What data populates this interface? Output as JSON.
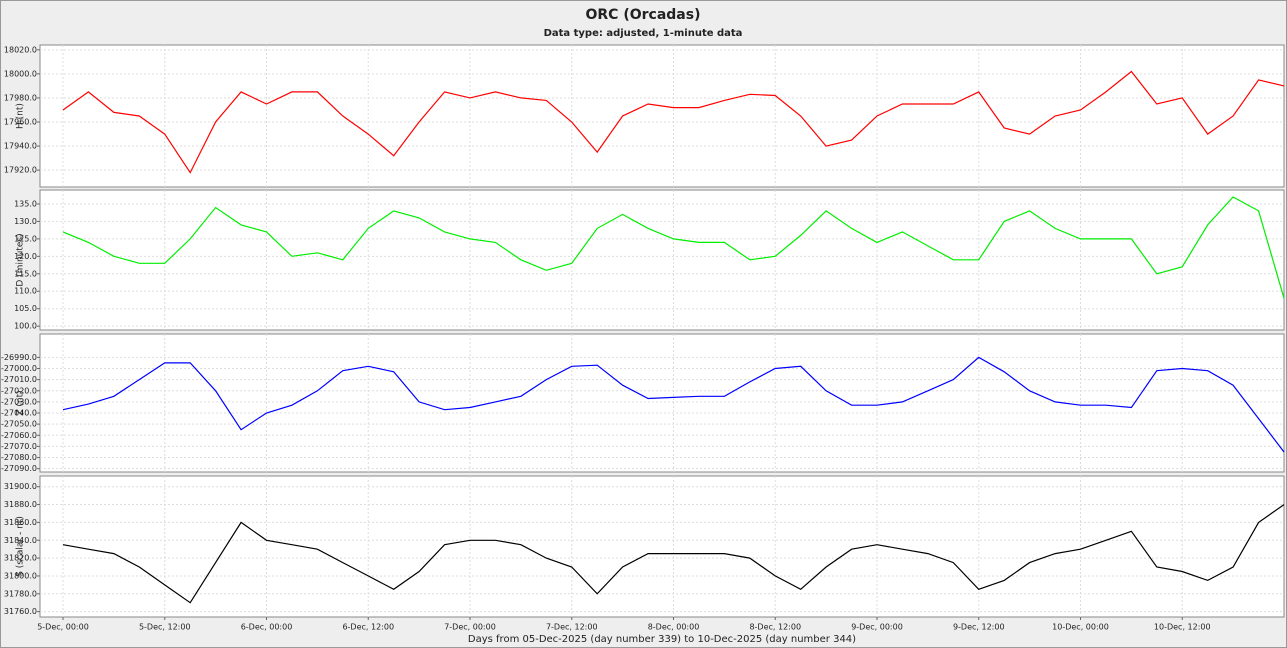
{
  "title": "ORC (Orcadas)",
  "subtitle": "Data type: adjusted, 1-minute data",
  "chart_data": [
    {
      "type": "line",
      "ylabel": "H (nt)",
      "color": "#ff0000",
      "grid": true,
      "xlim": [
        -0.113,
        6
      ],
      "ylim": [
        17906,
        18024
      ],
      "yticks": [
        {
          "value": 17920,
          "label": "17920.0"
        },
        {
          "value": 17940,
          "label": "17940.0"
        },
        {
          "value": 17960,
          "label": "17960.0"
        },
        {
          "value": 17980,
          "label": "17980.0"
        },
        {
          "value": 18000,
          "label": "18000.0"
        },
        {
          "value": 18020,
          "label": "18020.0"
        }
      ],
      "x": [
        0,
        0.125,
        0.25,
        0.375,
        0.5,
        0.625,
        0.75,
        0.875,
        1,
        1.125,
        1.25,
        1.375,
        1.5,
        1.625,
        1.75,
        1.875,
        2,
        2.125,
        2.25,
        2.375,
        2.5,
        2.625,
        2.75,
        2.875,
        3,
        3.125,
        3.25,
        3.375,
        3.5,
        3.625,
        3.75,
        3.875,
        4,
        4.125,
        4.25,
        4.375,
        4.5,
        4.625,
        4.75,
        4.875,
        5,
        5.125,
        5.25,
        5.375,
        5.5,
        5.625,
        5.75,
        5.875,
        6
      ],
      "values": [
        17970,
        17985,
        17968,
        17965,
        17950,
        17918,
        17960,
        17985,
        17975,
        17985,
        17985,
        17965,
        17950,
        17932,
        17960,
        17985,
        17980,
        17985,
        17980,
        17978,
        17960,
        17935,
        17965,
        17975,
        17972,
        17972,
        17978,
        17983,
        17982,
        17965,
        17940,
        17945,
        17965,
        17975,
        17975,
        17975,
        17985,
        17955,
        17950,
        17965,
        17970,
        17985,
        18002,
        17975,
        17980,
        17950,
        17965,
        17995,
        17990
      ]
    },
    {
      "type": "line",
      "ylabel": "D (minutes)",
      "color": "#00ee00",
      "grid": true,
      "xlim": [
        -0.113,
        6
      ],
      "ylim": [
        98.9,
        139
      ],
      "yticks": [
        {
          "value": 100,
          "label": "100.0"
        },
        {
          "value": 105,
          "label": "105.0"
        },
        {
          "value": 110,
          "label": "110.0"
        },
        {
          "value": 115,
          "label": "115.0"
        },
        {
          "value": 120,
          "label": "120.0"
        },
        {
          "value": 125,
          "label": "125.0"
        },
        {
          "value": 130,
          "label": "130.0"
        },
        {
          "value": 135,
          "label": "135.0"
        }
      ],
      "x": [
        0,
        0.125,
        0.25,
        0.375,
        0.5,
        0.625,
        0.75,
        0.875,
        1,
        1.125,
        1.25,
        1.375,
        1.5,
        1.625,
        1.75,
        1.875,
        2,
        2.125,
        2.25,
        2.375,
        2.5,
        2.625,
        2.75,
        2.875,
        3,
        3.125,
        3.25,
        3.375,
        3.5,
        3.625,
        3.75,
        3.875,
        4,
        4.125,
        4.25,
        4.375,
        4.5,
        4.625,
        4.75,
        4.875,
        5,
        5.125,
        5.25,
        5.375,
        5.5,
        5.625,
        5.75,
        5.875,
        6
      ],
      "values": [
        127,
        124,
        120,
        118,
        118,
        125,
        134,
        129,
        127,
        120,
        121,
        119,
        128,
        133,
        131,
        127,
        125,
        124,
        119,
        116,
        118,
        128,
        132,
        128,
        125,
        124,
        124,
        119,
        120,
        126,
        133,
        128,
        124,
        127,
        123,
        119,
        119,
        130,
        133,
        128,
        125,
        125,
        125,
        115,
        117,
        129,
        137,
        133,
        108
      ]
    },
    {
      "type": "line",
      "ylabel": "Z (nt)",
      "color": "#0000ff",
      "grid": true,
      "xlim": [
        -0.113,
        6
      ],
      "ylim": [
        -27093,
        -26969
      ],
      "yticks": [
        {
          "value": -27090,
          "label": "-27090.0"
        },
        {
          "value": -27080,
          "label": "-27080.0"
        },
        {
          "value": -27070,
          "label": "-27070.0"
        },
        {
          "value": -27060,
          "label": "-27060.0"
        },
        {
          "value": -27050,
          "label": "-27050.0"
        },
        {
          "value": -27040,
          "label": "-27040.0"
        },
        {
          "value": -27030,
          "label": "-27030.0"
        },
        {
          "value": -27020,
          "label": "-27020.0"
        },
        {
          "value": -27010,
          "label": "-27010.0"
        },
        {
          "value": -27000,
          "label": "-27000.0"
        },
        {
          "value": -26990,
          "label": "-26990.0"
        }
      ],
      "x": [
        0,
        0.125,
        0.25,
        0.375,
        0.5,
        0.625,
        0.75,
        0.875,
        1,
        1.125,
        1.25,
        1.375,
        1.5,
        1.625,
        1.75,
        1.875,
        2,
        2.125,
        2.25,
        2.375,
        2.5,
        2.625,
        2.75,
        2.875,
        3,
        3.125,
        3.25,
        3.375,
        3.5,
        3.625,
        3.75,
        3.875,
        4,
        4.125,
        4.25,
        4.375,
        4.5,
        4.625,
        4.75,
        4.875,
        5,
        5.125,
        5.25,
        5.375,
        5.5,
        5.625,
        5.75,
        5.875,
        6
      ],
      "values": [
        -27037,
        -27032,
        -27025,
        -27010,
        -26995,
        -26995,
        -27020,
        -27055,
        -27040,
        -27033,
        -27020,
        -27002,
        -26998,
        -27003,
        -27030,
        -27037,
        -27035,
        -27030,
        -27025,
        -27010,
        -26998,
        -26997,
        -27015,
        -27027,
        -27026,
        -27025,
        -27025,
        -27012,
        -27000,
        -26998,
        -27020,
        -27033,
        -27033,
        -27030,
        -27020,
        -27010,
        -26990,
        -27003,
        -27020,
        -27030,
        -27033,
        -27033,
        -27035,
        -27002,
        -27000,
        -27002,
        -27015,
        -27045,
        -27075
      ]
    },
    {
      "type": "line",
      "ylabel": "S (scalar - nt)",
      "color": "#000000",
      "grid": true,
      "xlim": [
        -0.113,
        6
      ],
      "ylim": [
        31754,
        31912
      ],
      "yticks": [
        {
          "value": 31760,
          "label": "31760.0"
        },
        {
          "value": 31780,
          "label": "31780.0"
        },
        {
          "value": 31800,
          "label": "31800.0"
        },
        {
          "value": 31820,
          "label": "31820.0"
        },
        {
          "value": 31840,
          "label": "31840.0"
        },
        {
          "value": 31860,
          "label": "31860.0"
        },
        {
          "value": 31880,
          "label": "31880.0"
        },
        {
          "value": 31900,
          "label": "31900.0"
        }
      ],
      "xlabel": "Days from 05-Dec-2025 (day number 339) to 10-Dec-2025 (day number 344)",
      "xticks": [
        {
          "value": 0,
          "label": "5-Dec, 00:00"
        },
        {
          "value": 0.5,
          "label": "5-Dec, 12:00"
        },
        {
          "value": 1,
          "label": "6-Dec, 00:00"
        },
        {
          "value": 1.5,
          "label": "6-Dec, 12:00"
        },
        {
          "value": 2,
          "label": "7-Dec, 00:00"
        },
        {
          "value": 2.5,
          "label": "7-Dec, 12:00"
        },
        {
          "value": 3,
          "label": "8-Dec, 00:00"
        },
        {
          "value": 3.5,
          "label": "8-Dec, 12:00"
        },
        {
          "value": 4,
          "label": "9-Dec, 00:00"
        },
        {
          "value": 4.5,
          "label": "9-Dec, 12:00"
        },
        {
          "value": 5,
          "label": "10-Dec, 00:00"
        },
        {
          "value": 5.5,
          "label": "10-Dec, 12:00"
        }
      ],
      "x": [
        0,
        0.125,
        0.25,
        0.375,
        0.5,
        0.625,
        0.75,
        0.875,
        1,
        1.125,
        1.25,
        1.375,
        1.5,
        1.625,
        1.75,
        1.875,
        2,
        2.125,
        2.25,
        2.375,
        2.5,
        2.625,
        2.75,
        2.875,
        3,
        3.125,
        3.25,
        3.375,
        3.5,
        3.625,
        3.75,
        3.875,
        4,
        4.125,
        4.25,
        4.375,
        4.5,
        4.625,
        4.75,
        4.875,
        5,
        5.125,
        5.25,
        5.375,
        5.5,
        5.625,
        5.75,
        5.875,
        6
      ],
      "values": [
        31835,
        31830,
        31825,
        31810,
        31790,
        31770,
        31815,
        31860,
        31840,
        31835,
        31830,
        31815,
        31800,
        31785,
        31805,
        31835,
        31840,
        31840,
        31835,
        31820,
        31810,
        31780,
        31810,
        31825,
        31825,
        31825,
        31825,
        31820,
        31800,
        31785,
        31810,
        31830,
        31835,
        31830,
        31825,
        31815,
        31785,
        31795,
        31815,
        31825,
        31830,
        31840,
        31850,
        31810,
        31805,
        31795,
        31810,
        31860,
        31880
      ]
    }
  ]
}
